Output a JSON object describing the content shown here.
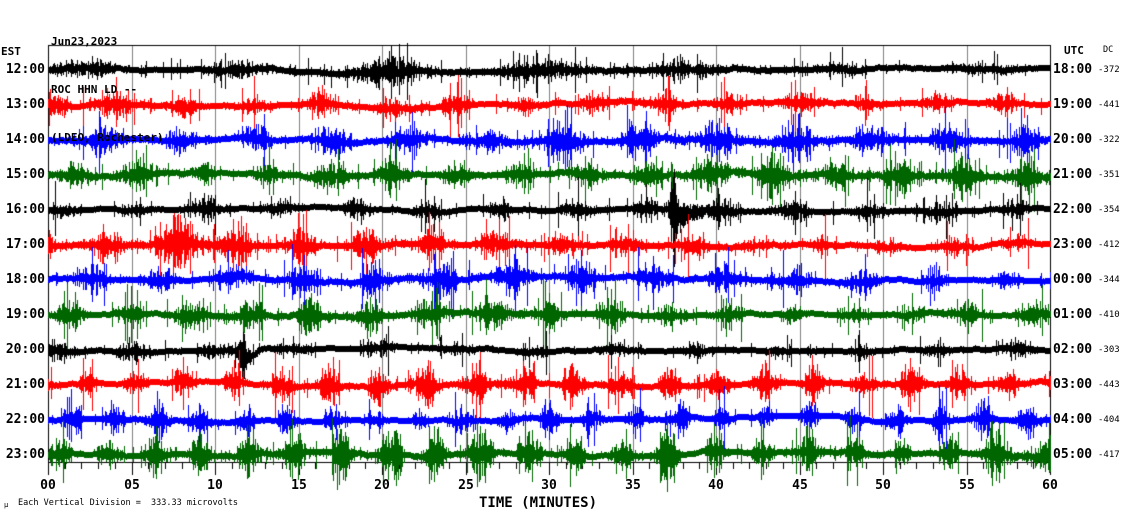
{
  "header": {
    "date": "Jun23,2023",
    "station": "ROC HHN LD --",
    "network": "(LDEO, Rochester)"
  },
  "axes": {
    "left_timezone": "EST",
    "right_timezone": "UTC",
    "dc_header": "DC",
    "xlabel": "TIME (MINUTES)",
    "x_tick_labels": [
      "00",
      "05",
      "10",
      "15",
      "20",
      "25",
      "30",
      "35",
      "40",
      "45",
      "50",
      "55",
      "60"
    ],
    "scale_note": "Each Vertical Division =  333.33 microvolts",
    "scale_glyph": "μ"
  },
  "colors": {
    "background": "#ffffff",
    "frame": "#000000",
    "grid": "#808080",
    "trace_cycle": [
      "#000000",
      "#ff0000",
      "#0000ff",
      "#006600"
    ]
  },
  "chart_data": {
    "type": "line",
    "title": "ROC HHN LD -- (LDEO, Rochester) helicorder, Jun23,2023",
    "xlabel": "TIME (MINUTES)",
    "x_range": [
      0,
      60
    ],
    "x_tick_interval_major": 5,
    "x_tick_interval_minor": 1,
    "grid": "vertical gray lines every 5 minutes",
    "legend_position": "none",
    "scale": "Each Vertical Division = 333.33 microvolts",
    "rows": [
      {
        "est": "12:00",
        "utc": "18:00",
        "dc": "-372",
        "color": "#000000",
        "base": 10,
        "period": 9.0,
        "burst": 0.9,
        "events": []
      },
      {
        "est": "13:00",
        "utc": "19:00",
        "dc": "-441",
        "color": "#ff0000",
        "base": 13,
        "period": 4.1,
        "burst": 1.1,
        "events": [
          {
            "t": 3.5,
            "w": 2.5,
            "amp": 1.45
          }
        ]
      },
      {
        "est": "14:00",
        "utc": "20:00",
        "dc": "-322",
        "color": "#0000ff",
        "base": 10,
        "period": 4.6,
        "burst": 1.3,
        "events": [
          {
            "t": 31,
            "w": 2.0,
            "amp": 1.4
          }
        ]
      },
      {
        "est": "15:00",
        "utc": "21:00",
        "dc": "-351",
        "color": "#006600",
        "base": 11,
        "period": 3.8,
        "burst": 1.3,
        "events": []
      },
      {
        "est": "16:00",
        "utc": "22:00",
        "dc": "-354",
        "color": "#000000",
        "base": 8,
        "period": 4.4,
        "burst": 1.2,
        "quake": 37.4,
        "events": [
          {
            "t": 9,
            "w": 1.6,
            "amp": 1.9
          }
        ]
      },
      {
        "est": "17:00",
        "utc": "23:00",
        "dc": "-412",
        "color": "#ff0000",
        "base": 10,
        "period": 3.9,
        "burst": 1.2,
        "events": [
          {
            "t": 8.6,
            "w": 1.4,
            "amp": 2.6
          }
        ]
      },
      {
        "est": "18:00",
        "utc": "00:00",
        "dc": "-344",
        "color": "#0000ff",
        "base": 9,
        "period": 4.2,
        "burst": 1.4,
        "events": []
      },
      {
        "est": "19:00",
        "utc": "01:00",
        "dc": "-410",
        "color": "#006600",
        "base": 9,
        "period": 3.6,
        "burst": 1.4,
        "events": [
          {
            "t": 54.2,
            "w": 1.0,
            "amp": 2.3
          }
        ]
      },
      {
        "est": "20:00",
        "utc": "02:00",
        "dc": "-303",
        "color": "#000000",
        "base": 8,
        "period": 4.8,
        "burst": 1.3,
        "dip": 11.6,
        "events": []
      },
      {
        "est": "21:00",
        "utc": "03:00",
        "dc": "-443",
        "color": "#ff0000",
        "base": 7,
        "period": 2.9,
        "burst": 2.4,
        "events": []
      },
      {
        "est": "22:00",
        "utc": "04:00",
        "dc": "-404",
        "color": "#0000ff",
        "base": 7,
        "period": 2.6,
        "burst": 2.6,
        "events": []
      },
      {
        "est": "23:00",
        "utc": "05:00",
        "dc": "-417",
        "color": "#006600",
        "base": 9,
        "period": 2.8,
        "burst": 2.0,
        "events": [
          {
            "t": 57.6,
            "w": 1.6,
            "amp": 1.6
          },
          {
            "t": 21,
            "w": 0.3,
            "amp": 2.6
          },
          {
            "t": 36.8,
            "w": 0.5,
            "amp": 2.8
          }
        ]
      }
    ]
  }
}
